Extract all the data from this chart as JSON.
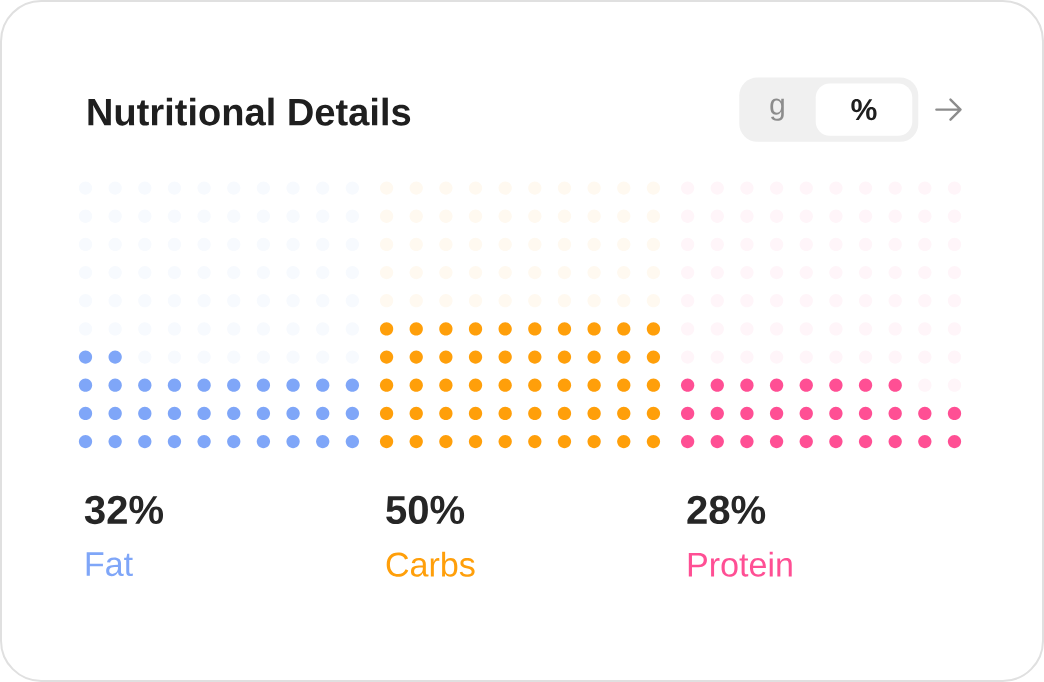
{
  "chart_data": {
    "type": "other",
    "title": "Nutritional Details",
    "categories": [
      "Fat",
      "Carbs",
      "Protein"
    ],
    "values": [
      32,
      50,
      28
    ],
    "value_labels": [
      "32%",
      "50%",
      "28%"
    ],
    "colors": [
      "#7fa6f8",
      "#ff9f0a",
      "#ff4f94"
    ],
    "annotations": [
      "g",
      "%"
    ]
  }
}
